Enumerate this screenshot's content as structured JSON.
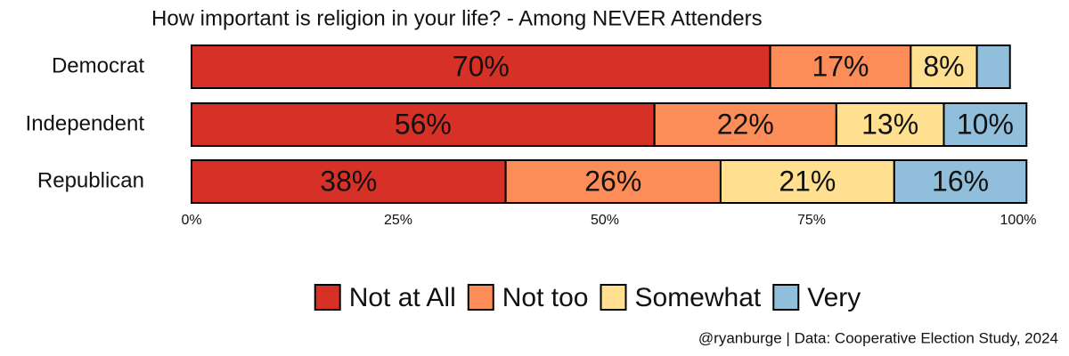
{
  "chart_data": {
    "type": "stacked-bar-horizontal",
    "title": "How important is religion in your life? - Among NEVER Attenders",
    "caption": "@ryanburge | Data: Cooperative Election Study, 2024",
    "categories": [
      "Democrat",
      "Independent",
      "Republican"
    ],
    "series": [
      {
        "name": "Not at All",
        "color": "#d73027",
        "values": [
          70,
          56,
          38
        ],
        "value_labels": [
          "70%",
          "56%",
          "38%"
        ]
      },
      {
        "name": "Not too",
        "color": "#fc8d59",
        "values": [
          17,
          22,
          26
        ],
        "value_labels": [
          "17%",
          "22%",
          "26%"
        ]
      },
      {
        "name": "Somewhat",
        "color": "#fee090",
        "values": [
          8,
          13,
          21
        ],
        "value_labels": [
          "8%",
          "13%",
          "21%"
        ]
      },
      {
        "name": "Very",
        "color": "#91bfdb",
        "values": [
          4,
          10,
          16
        ],
        "value_labels": [
          null,
          "10%",
          "16%"
        ]
      }
    ],
    "xlim": [
      0,
      100
    ],
    "xticks": [
      {
        "value": 0,
        "label": "0%"
      },
      {
        "value": 25,
        "label": "25%"
      },
      {
        "value": 50,
        "label": "50%"
      },
      {
        "value": 75,
        "label": "75%"
      },
      {
        "value": 100,
        "label": "100%"
      }
    ],
    "legend": "bottom"
  }
}
